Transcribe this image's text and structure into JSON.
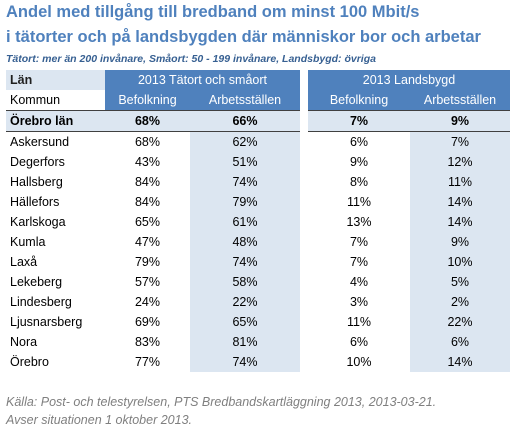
{
  "title_lines": [
    "Andel med tillgång till bredband om minst 100 Mbit/s",
    "i tätorter och på landsbygden där människor bor och arbetar"
  ],
  "subtitle": "Tätort: mer än 200 invånare, Småort: 50 - 199 invånare, Landsbygd: övriga",
  "table": {
    "group_header": [
      "Län",
      "2013 Tätort och småort",
      "2013 Landsbygd"
    ],
    "columns": [
      "Kommun",
      "Befolkning",
      "Arbetsställen",
      "Befolkning",
      "Arbetsställen"
    ],
    "total": [
      "Örebro län",
      "68%",
      "66%",
      "7%",
      "9%"
    ],
    "rows": [
      [
        "Askersund",
        "68%",
        "62%",
        "6%",
        "7%"
      ],
      [
        "Degerfors",
        "43%",
        "51%",
        "9%",
        "12%"
      ],
      [
        "Hallsberg",
        "84%",
        "74%",
        "8%",
        "11%"
      ],
      [
        "Hällefors",
        "84%",
        "79%",
        "11%",
        "14%"
      ],
      [
        "Karlskoga",
        "65%",
        "61%",
        "13%",
        "14%"
      ],
      [
        "Kumla",
        "47%",
        "48%",
        "7%",
        "9%"
      ],
      [
        "Laxå",
        "79%",
        "74%",
        "7%",
        "10%"
      ],
      [
        "Lekeberg",
        "57%",
        "58%",
        "4%",
        "5%"
      ],
      [
        "Lindesberg",
        "24%",
        "22%",
        "3%",
        "2%"
      ],
      [
        "Ljusnarsberg",
        "69%",
        "65%",
        "11%",
        "22%"
      ],
      [
        "Nora",
        "83%",
        "81%",
        "6%",
        "6%"
      ],
      [
        "Örebro",
        "77%",
        "74%",
        "10%",
        "14%"
      ]
    ]
  },
  "source_lines": [
    "Källa: Post- och telestyrelsen, PTS Bredbandskartläggning 2013, 2013-03-21.",
    "Avser situationen 1 oktober 2013."
  ]
}
